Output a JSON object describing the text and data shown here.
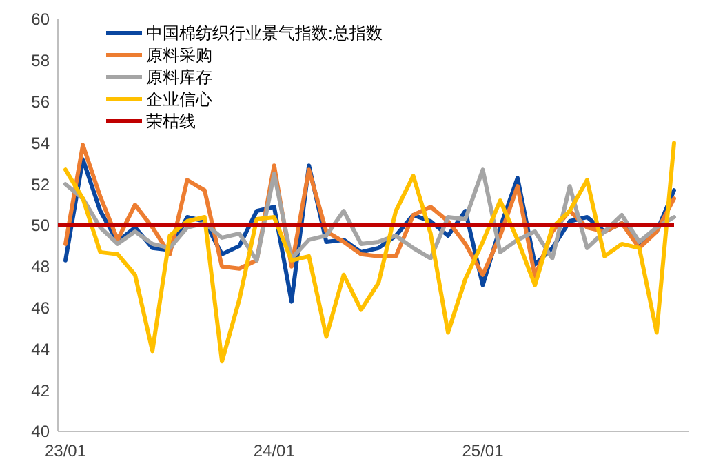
{
  "chart_data": {
    "type": "line",
    "categories": [
      "23/01",
      null,
      null,
      null,
      null,
      null,
      null,
      null,
      null,
      null,
      null,
      null,
      "24/01",
      null,
      null,
      null,
      null,
      null,
      null,
      null,
      null,
      null,
      null,
      null,
      "25/01",
      null,
      null,
      null,
      null,
      null,
      null,
      null,
      null,
      null,
      null,
      null
    ],
    "series": [
      {
        "name": "中国棉纺织行业景气指数:总指数",
        "color": "#0a47a0",
        "values": [
          48.3,
          53.2,
          50.7,
          49.2,
          49.9,
          48.9,
          48.8,
          50.4,
          50.2,
          48.6,
          49.0,
          50.7,
          50.9,
          46.3,
          52.9,
          49.2,
          49.3,
          48.7,
          48.9,
          49.5,
          50.5,
          50.2,
          49.5,
          50.7,
          47.1,
          49.9,
          52.3,
          48.1,
          48.9,
          50.2,
          50.4,
          49.7,
          50.1,
          49.1,
          49.7,
          51.7
        ]
      },
      {
        "name": "原料采购",
        "color": "#ed7d31",
        "values": [
          49.1,
          53.9,
          51.4,
          49.3,
          51.0,
          49.9,
          48.6,
          52.2,
          51.7,
          48.0,
          47.9,
          48.3,
          52.9,
          48.0,
          52.7,
          49.7,
          49.2,
          48.6,
          48.5,
          48.5,
          50.5,
          50.9,
          50.2,
          49.1,
          47.6,
          49.5,
          51.9,
          47.5,
          49.7,
          50.7,
          49.9,
          49.7,
          50.1,
          48.9,
          49.7,
          51.3
        ]
      },
      {
        "name": "原料库存",
        "color": "#a5a5a5",
        "values": [
          52.0,
          51.3,
          49.9,
          49.1,
          49.7,
          49.1,
          48.9,
          49.9,
          50.1,
          49.4,
          49.6,
          48.3,
          52.5,
          48.4,
          49.3,
          49.5,
          50.7,
          49.1,
          49.2,
          49.5,
          48.9,
          48.4,
          50.4,
          50.3,
          52.7,
          48.7,
          49.3,
          49.7,
          48.4,
          51.9,
          48.9,
          49.7,
          50.5,
          49.2,
          49.9,
          50.4
        ]
      },
      {
        "name": "企业信心",
        "color": "#ffc000",
        "values": [
          52.7,
          51.3,
          48.7,
          48.6,
          47.6,
          43.9,
          49.5,
          50.2,
          50.4,
          43.4,
          46.4,
          50.3,
          50.4,
          48.3,
          48.5,
          44.6,
          47.6,
          45.9,
          47.2,
          50.7,
          52.4,
          49.6,
          44.8,
          47.4,
          49.2,
          51.2,
          49.3,
          47.1,
          49.9,
          50.7,
          52.2,
          48.5,
          49.1,
          48.9,
          44.8,
          54.0
        ]
      }
    ],
    "ref_lines": [
      {
        "axis": "y",
        "value": 50,
        "label": "荣枯线",
        "color": "#c00000"
      }
    ],
    "ylim": [
      40,
      60
    ],
    "yticks": [
      40,
      42,
      44,
      46,
      48,
      50,
      52,
      54,
      56,
      58,
      60
    ],
    "grid": false,
    "legend": "top left",
    "line_style": "solid",
    "marker": "none"
  }
}
